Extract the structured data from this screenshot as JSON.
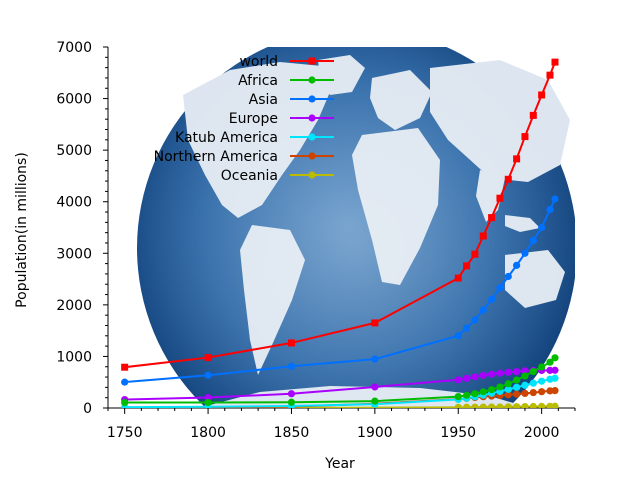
{
  "chart_data": {
    "type": "line",
    "title": "",
    "xlabel": "Year",
    "ylabel": "Population(in millions)",
    "xlim": [
      1740,
      2020
    ],
    "ylim": [
      0,
      7000
    ],
    "xticks": [
      1750,
      1800,
      1850,
      1900,
      1950,
      2000
    ],
    "yticks": [
      0,
      1000,
      2000,
      3000,
      4000,
      5000,
      6000,
      7000
    ],
    "grid": false,
    "legend_position": "top-center",
    "background": "world map globe",
    "x": [
      1750,
      1800,
      1850,
      1900,
      1950,
      1955,
      1960,
      1965,
      1970,
      1975,
      1980,
      1985,
      1990,
      1995,
      2000,
      2005,
      2008
    ],
    "series": [
      {
        "name": "world",
        "color": "#ff0000",
        "marker": "square",
        "values": [
          791,
          978,
          1262,
          1650,
          2519,
          2756,
          2982,
          3335,
          3692,
          4068,
          4435,
          4831,
          5263,
          5674,
          6070,
          6454,
          6707
        ]
      },
      {
        "name": "Africa",
        "color": "#00bb00",
        "marker": "circle",
        "values": [
          106,
          107,
          111,
          133,
          221,
          246,
          277,
          314,
          357,
          408,
          470,
          542,
          622,
          707,
          796,
          888,
          973
        ]
      },
      {
        "name": "Asia",
        "color": "#0070ff",
        "marker": "circle",
        "values": [
          502,
          635,
          809,
          947,
          1402,
          1550,
          1708,
          1900,
          2106,
          2330,
          2550,
          2766,
          3000,
          3250,
          3500,
          3850,
          4054
        ]
      },
      {
        "name": "Europe",
        "color": "#aa00ff",
        "marker": "circle",
        "values": [
          163,
          203,
          276,
          408,
          547,
          575,
          605,
          634,
          656,
          675,
          692,
          706,
          721,
          727,
          728,
          730,
          732
        ]
      },
      {
        "name": "Katub America",
        "color": "#00e5ff",
        "marker": "circle",
        "values": [
          16,
          24,
          38,
          74,
          167,
          191,
          218,
          250,
          285,
          322,
          361,
          401,
          441,
          481,
          520,
          558,
          577
        ]
      },
      {
        "name": "Northern America",
        "color": "#cc4400",
        "marker": "circle",
        "values": [
          2,
          7,
          26,
          82,
          172,
          187,
          204,
          219,
          232,
          243,
          256,
          269,
          283,
          299,
          316,
          332,
          337
        ]
      },
      {
        "name": "Oceania",
        "color": "#bbbb00",
        "marker": "circle",
        "values": [
          2,
          2,
          2,
          6,
          13,
          14,
          16,
          18,
          20,
          21,
          23,
          25,
          27,
          29,
          31,
          33,
          34
        ]
      }
    ]
  }
}
